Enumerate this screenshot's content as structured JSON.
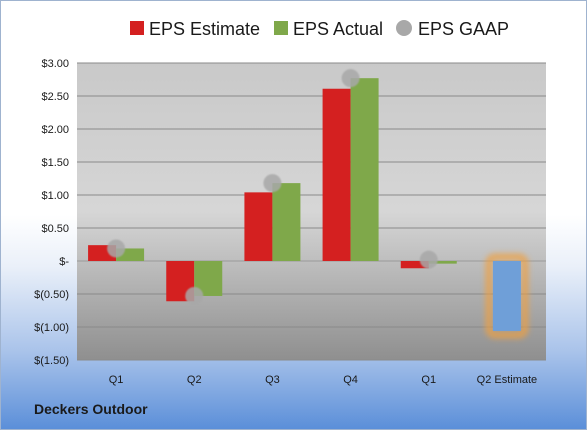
{
  "company": "Deckers Outdoor",
  "colors": {
    "estimate": "#d42020",
    "actual": "#7fa84a",
    "gaap": "#a8a8a8",
    "future_estimate": "#6f9fd8",
    "future_glow": "#f0a040"
  },
  "chart_data": {
    "type": "bar",
    "categories": [
      "Q1",
      "Q2",
      "Q3",
      "Q4",
      "Q1",
      "Q2 Estimate"
    ],
    "series": [
      {
        "name": "EPS Estimate",
        "values": [
          0.24,
          -0.61,
          1.04,
          2.61,
          -0.11,
          -1.06
        ]
      },
      {
        "name": "EPS Actual",
        "values": [
          0.19,
          -0.53,
          1.18,
          2.77,
          -0.04,
          null
        ]
      },
      {
        "name": "EPS GAAP",
        "values": [
          0.19,
          -0.53,
          1.18,
          2.77,
          0.02,
          null
        ]
      }
    ],
    "ylim": [
      -1.5,
      3.0
    ],
    "yticks": [
      3.0,
      2.5,
      2.0,
      1.5,
      1.0,
      0.5,
      0,
      -0.5,
      -1.0,
      -1.5
    ],
    "ytick_labels": [
      "$3.00",
      "$2.50",
      "$2.00",
      "$1.50",
      "$1.00",
      "$0.50",
      "$-",
      "$(0.50)",
      "$(1.00)",
      "$(1.50)"
    ],
    "legend_position": "top",
    "grid": true
  }
}
